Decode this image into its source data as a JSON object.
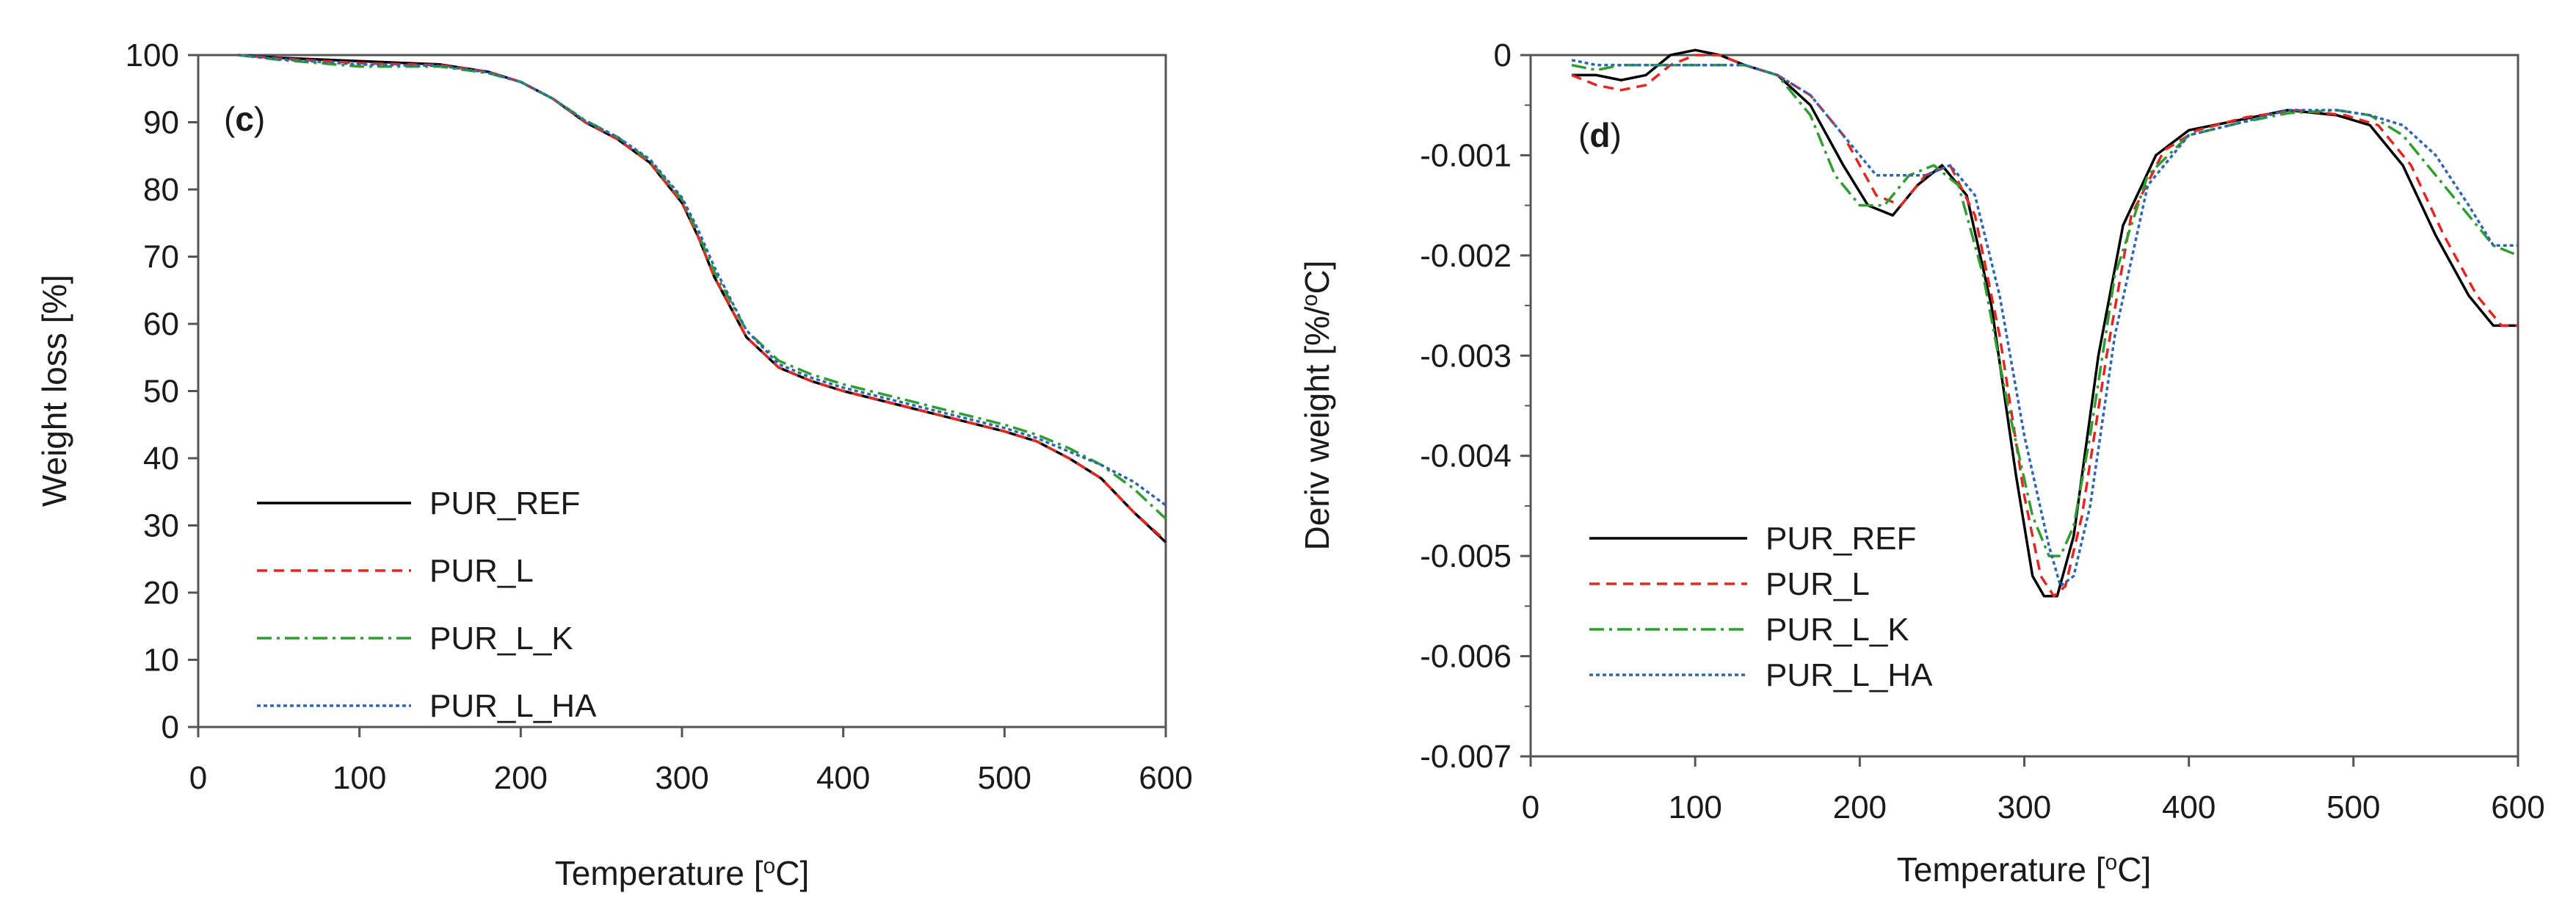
{
  "figure": {
    "colors": {
      "PUR_REF": "#000000",
      "PUR_L": "#e3261f",
      "PUR_L_K": "#2e9e2e",
      "PUR_L_HA": "#2b67b3"
    }
  },
  "chart_data": [
    {
      "type": "line",
      "panel_label": "c",
      "xlabel": "Temperature [",
      "xlabel_sup": "o",
      "xlabel_tail": "C]",
      "ylabel": "Weight loss [%]",
      "xlim": [
        0,
        600
      ],
      "ylim": [
        0,
        100
      ],
      "xticks": [
        0,
        100,
        200,
        300,
        400,
        500,
        600
      ],
      "yticks": [
        0,
        10,
        20,
        30,
        40,
        50,
        60,
        70,
        80,
        90,
        100
      ],
      "xtick_labels": [
        "0",
        "100",
        "200",
        "300",
        "400",
        "500",
        "600"
      ],
      "ytick_labels": [
        "0",
        "10",
        "20",
        "30",
        "40",
        "50",
        "60",
        "70",
        "80",
        "90",
        "100"
      ],
      "legend": [
        "PUR_REF",
        "PUR_L",
        "PUR_L_K",
        "PUR_L_HA"
      ],
      "legend_position": "lower-left",
      "series": [
        {
          "name": "PUR_REF",
          "x": [
            25,
            50,
            100,
            150,
            180,
            200,
            220,
            240,
            260,
            280,
            300,
            310,
            320,
            340,
            360,
            380,
            400,
            450,
            500,
            520,
            540,
            560,
            580,
            600
          ],
          "y": [
            100,
            99.6,
            99.1,
            98.6,
            97.5,
            96,
            93.5,
            90,
            87.5,
            84,
            78,
            73,
            67,
            58,
            53.5,
            51.5,
            50,
            47,
            44,
            42.5,
            40,
            37,
            32,
            27.5
          ]
        },
        {
          "name": "PUR_L",
          "x": [
            25,
            50,
            100,
            150,
            180,
            200,
            220,
            240,
            260,
            280,
            300,
            310,
            320,
            340,
            360,
            380,
            400,
            450,
            500,
            520,
            540,
            560,
            580,
            600
          ],
          "y": [
            100,
            99.5,
            98.8,
            98.5,
            97.5,
            96,
            93.5,
            90,
            87.5,
            84,
            78,
            73,
            67,
            58,
            53.5,
            51.5,
            50,
            47,
            44,
            42.5,
            40,
            37,
            32,
            27.7
          ]
        },
        {
          "name": "PUR_L_K",
          "x": [
            25,
            50,
            100,
            150,
            180,
            200,
            220,
            240,
            260,
            280,
            300,
            310,
            320,
            340,
            360,
            380,
            400,
            450,
            500,
            520,
            540,
            560,
            580,
            600
          ],
          "y": [
            100,
            99.3,
            98.3,
            98.3,
            97.3,
            96,
            93.5,
            90.3,
            87.8,
            84.3,
            78.5,
            73.5,
            67.8,
            59,
            54.5,
            52.5,
            51,
            48,
            45,
            43.5,
            41.5,
            39,
            35.5,
            31
          ]
        },
        {
          "name": "PUR_L_HA",
          "x": [
            25,
            50,
            100,
            150,
            180,
            200,
            220,
            240,
            260,
            280,
            300,
            310,
            320,
            340,
            360,
            380,
            400,
            450,
            500,
            520,
            540,
            560,
            580,
            600
          ],
          "y": [
            100,
            99.4,
            98.6,
            98.4,
            97.4,
            96,
            93.5,
            90.2,
            87.8,
            84.5,
            78.8,
            74,
            68.5,
            59,
            54,
            52,
            50.5,
            47.5,
            44.5,
            43,
            41,
            39,
            36.5,
            33
          ]
        }
      ]
    },
    {
      "type": "line",
      "panel_label": "d",
      "xlabel": "Temperature [",
      "xlabel_sup": "o",
      "xlabel_tail": "C]",
      "ylabel": "Deriv weight [%/",
      "ylabel_sup": "o",
      "ylabel_tail": "C]",
      "xlim": [
        0,
        600
      ],
      "ylim": [
        -0.007,
        0
      ],
      "xticks": [
        0,
        100,
        200,
        300,
        400,
        500,
        600
      ],
      "yticks": [
        0,
        -0.001,
        -0.002,
        -0.003,
        -0.004,
        -0.005,
        -0.006,
        -0.007
      ],
      "xtick_labels": [
        "0",
        "100",
        "200",
        "300",
        "400",
        "500",
        "600"
      ],
      "ytick_labels": [
        "0",
        "-0.001",
        "-0.002",
        "-0.003",
        "-0.004",
        "-0.005",
        "-0.006",
        "-0.007"
      ],
      "legend": [
        "PUR_REF",
        "PUR_L",
        "PUR_L_K",
        "PUR_L_HA"
      ],
      "legend_position": "lower-left",
      "series": [
        {
          "name": "PUR_REF",
          "x": [
            25,
            40,
            55,
            70,
            85,
            100,
            115,
            130,
            150,
            170,
            190,
            205,
            220,
            235,
            250,
            265,
            280,
            295,
            305,
            312,
            320,
            330,
            345,
            360,
            380,
            400,
            430,
            460,
            490,
            510,
            530,
            550,
            570,
            585,
            600
          ],
          "y": [
            -0.0002,
            -0.0002,
            -0.00025,
            -0.0002,
            0,
            5e-05,
            0,
            -0.0001,
            -0.0002,
            -0.0005,
            -0.0011,
            -0.0015,
            -0.0016,
            -0.0013,
            -0.0011,
            -0.0014,
            -0.0025,
            -0.0042,
            -0.0052,
            -0.0054,
            -0.0054,
            -0.0048,
            -0.003,
            -0.0017,
            -0.001,
            -0.00075,
            -0.00065,
            -0.00055,
            -0.0006,
            -0.0007,
            -0.0011,
            -0.0018,
            -0.0024,
            -0.0027,
            -0.0027
          ]
        },
        {
          "name": "PUR_L",
          "x": [
            25,
            40,
            55,
            70,
            85,
            100,
            115,
            130,
            150,
            170,
            190,
            210,
            225,
            240,
            255,
            270,
            285,
            300,
            310,
            318,
            325,
            335,
            350,
            365,
            385,
            405,
            435,
            465,
            495,
            515,
            535,
            555,
            575,
            590,
            600
          ],
          "y": [
            -0.0002,
            -0.0003,
            -0.00035,
            -0.0003,
            -0.0001,
            0,
            0,
            -0.0001,
            -0.0002,
            -0.0004,
            -0.0008,
            -0.0014,
            -0.0015,
            -0.0012,
            -0.0011,
            -0.0016,
            -0.0028,
            -0.0044,
            -0.0052,
            -0.0054,
            -0.0053,
            -0.0046,
            -0.003,
            -0.0016,
            -0.00095,
            -0.00075,
            -0.00062,
            -0.00055,
            -0.0006,
            -0.0007,
            -0.0011,
            -0.0018,
            -0.0024,
            -0.0027,
            -0.0027
          ]
        },
        {
          "name": "PUR_L_K",
          "x": [
            25,
            40,
            55,
            70,
            85,
            100,
            115,
            130,
            150,
            170,
            185,
            200,
            215,
            230,
            245,
            260,
            275,
            290,
            305,
            315,
            322,
            330,
            340,
            355,
            375,
            400,
            430,
            460,
            490,
            510,
            530,
            550,
            570,
            585,
            600
          ],
          "y": [
            -0.0001,
            -0.00015,
            -0.0001,
            -0.0001,
            -0.0001,
            -0.0001,
            -0.0001,
            -0.0001,
            -0.0002,
            -0.0006,
            -0.0012,
            -0.0015,
            -0.0015,
            -0.0012,
            -0.0011,
            -0.0013,
            -0.0022,
            -0.0035,
            -0.0046,
            -0.005,
            -0.005,
            -0.0047,
            -0.0038,
            -0.0022,
            -0.0012,
            -0.0008,
            -0.00068,
            -0.00058,
            -0.00055,
            -0.0006,
            -0.0008,
            -0.0012,
            -0.0016,
            -0.0019,
            -0.002
          ]
        },
        {
          "name": "PUR_L_HA",
          "x": [
            25,
            40,
            55,
            70,
            85,
            100,
            115,
            130,
            150,
            170,
            190,
            210,
            225,
            240,
            255,
            270,
            285,
            300,
            315,
            322,
            330,
            340,
            355,
            375,
            400,
            430,
            460,
            490,
            510,
            530,
            550,
            570,
            585,
            600
          ],
          "y": [
            -5e-05,
            -0.0001,
            -0.0001,
            -0.0001,
            -0.0001,
            -0.0001,
            -0.0001,
            -0.0001,
            -0.0002,
            -0.0004,
            -0.0008,
            -0.0012,
            -0.0012,
            -0.0012,
            -0.0011,
            -0.0014,
            -0.0024,
            -0.0038,
            -0.0049,
            -0.0053,
            -0.0052,
            -0.0045,
            -0.0028,
            -0.0013,
            -0.0008,
            -0.00068,
            -0.00055,
            -0.00055,
            -0.0006,
            -0.0007,
            -0.001,
            -0.0015,
            -0.0019,
            -0.0019
          ]
        }
      ]
    }
  ]
}
